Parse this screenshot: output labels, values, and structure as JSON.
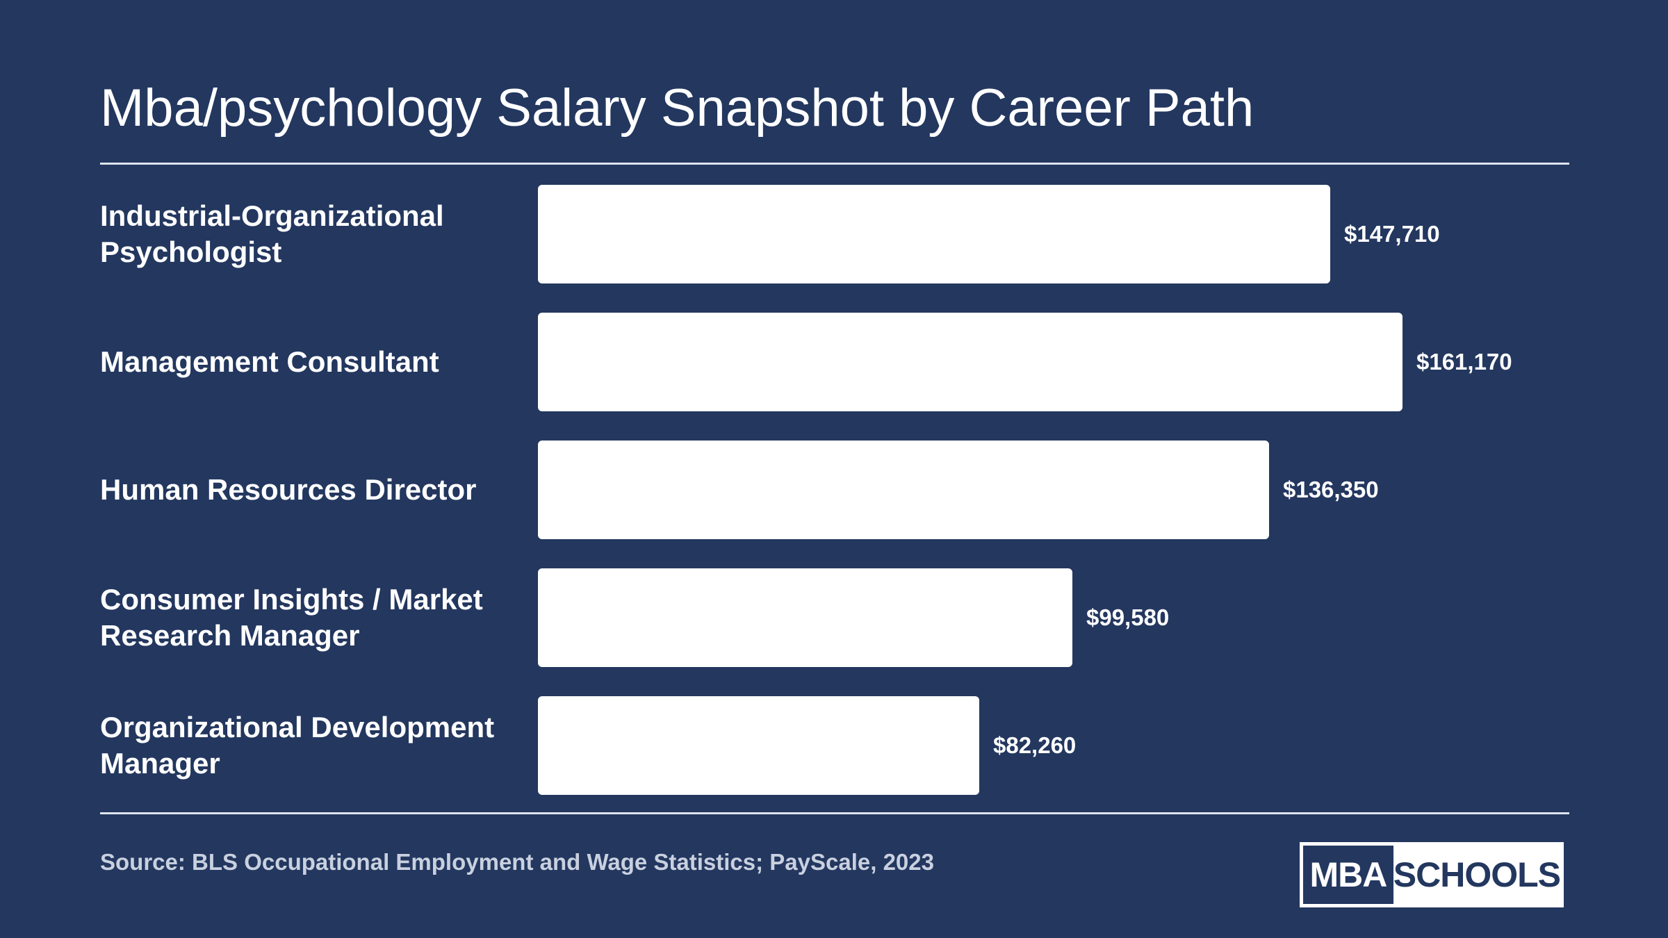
{
  "source": "Source: BLS Occupational Employment and Wage Statistics; PayScale, 2023",
  "logo": {
    "left_text": "MBA",
    "right_text": "SCHOOLS"
  },
  "colors": {
    "background": "#23375f",
    "bar": "#ffffff",
    "text": "#ffffff",
    "source_text": "#c9d0df"
  },
  "chart_data": {
    "type": "bar",
    "orientation": "horizontal",
    "title": "Mba/psychology Salary Snapshot by Career Path",
    "categories": [
      "Industrial-Organizational Psychologist",
      "Management Consultant",
      "Human Resources Director",
      "Consumer Insights / Market Research Manager",
      "Organizational Development Manager"
    ],
    "values": [
      147710,
      161170,
      136350,
      99580,
      82260
    ],
    "value_labels": [
      "$147,710",
      "$161,170",
      "$136,350",
      "$99,580",
      "$82,260"
    ],
    "xlim": [
      0,
      161170
    ],
    "grid": false,
    "legend": "none"
  }
}
